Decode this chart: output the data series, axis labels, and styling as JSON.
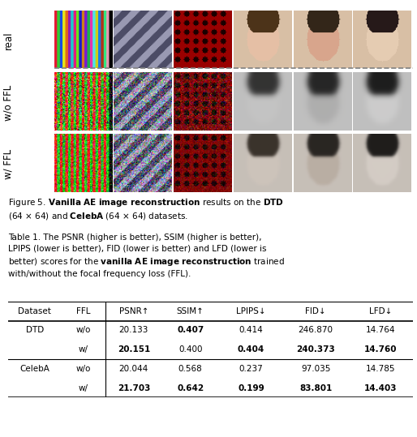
{
  "fig_caption": "Figure 5. **Vanilla AE image reconstruction** results on the **DTD** (64 × 64) and **CelebA** (64 × 64) datasets.",
  "table_caption": "Table 1. The PSNR (higher is better), SSIM (higher is better), LPIPS (lower is better), FID (lower is better) and LFD (lower is better) scores for the **vanilla AE image reconstruction** trained with/without the focal frequency loss (FFL).",
  "col_headers": [
    "Dataset",
    "FFL",
    "PSNR↑",
    "SSIM↑",
    "LPIPS↓",
    "FID↓",
    "LFD↓"
  ],
  "rows": [
    [
      "DTD",
      "w/o",
      "20.133",
      "**0.407**",
      "0.414",
      "246.870",
      "14.764"
    ],
    [
      "",
      "w/",
      "**20.151**",
      "0.400",
      "**0.404**",
      "**240.373**",
      "**14.760**"
    ],
    [
      "CelebA",
      "w/o",
      "20.044",
      "0.568",
      "0.237",
      "97.035",
      "14.785"
    ],
    [
      "",
      "w/",
      "**21.703**",
      "**0.642**",
      "**0.199**",
      "**83.801**",
      "**14.403**"
    ]
  ],
  "row_labels": [
    "real",
    "w/o FFL",
    "w/ FFL"
  ],
  "dtd_label": "DTD",
  "celeba_label": "CelebA",
  "bg_color": "#ffffff",
  "text_color": "#000000",
  "table_line_color": "#000000",
  "font_size_caption": 7.5,
  "font_size_table": 7.5,
  "font_size_label": 8.5
}
